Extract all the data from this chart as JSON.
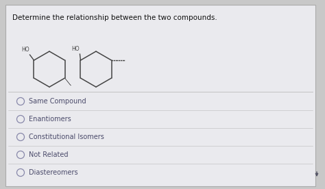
{
  "title": "Determine the relationship between the two compounds.",
  "options": [
    "Same Compound",
    "Enantiomers",
    "Constitutional Isomers",
    "Not Related",
    "Diastereomers"
  ],
  "bg_color": "#c8c8c8",
  "panel_color": "#e8e8ec",
  "title_fontsize": 7.5,
  "option_fontsize": 7.0,
  "title_color": "#111111",
  "option_color": "#4a4a6a",
  "circle_edge_color": "#8888aa",
  "line_color": "#bbbbbb",
  "mol_color": "#444444"
}
